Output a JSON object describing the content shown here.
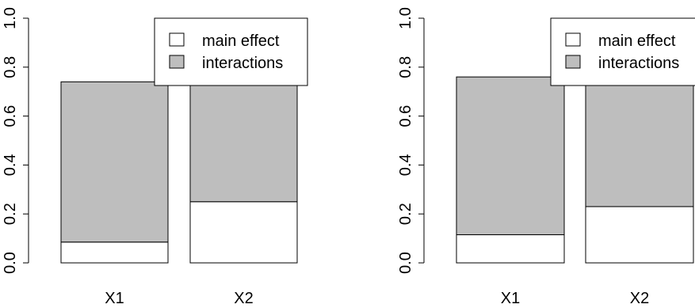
{
  "colors": {
    "main_effect": "#ffffff",
    "interactions": "#bebebe",
    "stroke": "#000000"
  },
  "legend": {
    "placement": "top-right",
    "items": [
      {
        "label": "main effect",
        "color": "#ffffff"
      },
      {
        "label": "interactions",
        "color": "#bebebe"
      }
    ]
  },
  "chart_data": [
    {
      "type": "bar",
      "stacked": true,
      "categories": [
        "X1",
        "X2"
      ],
      "series": [
        {
          "name": "main effect",
          "values": [
            0.085,
            0.25
          ]
        },
        {
          "name": "interactions",
          "values": [
            0.655,
            0.615
          ]
        }
      ],
      "totals": [
        0.74,
        0.865
      ],
      "ylim": [
        0,
        1
      ],
      "yticks": [
        "0.0",
        "0.2",
        "0.4",
        "0.6",
        "0.8",
        "1.0"
      ],
      "grid": false,
      "legend": "top-right"
    },
    {
      "type": "bar",
      "stacked": true,
      "categories": [
        "X1",
        "X2"
      ],
      "series": [
        {
          "name": "main effect",
          "values": [
            0.115,
            0.23
          ]
        },
        {
          "name": "interactions",
          "values": [
            0.645,
            0.645
          ]
        }
      ],
      "totals": [
        0.76,
        0.875
      ],
      "ylim": [
        0,
        1
      ],
      "yticks": [
        "0.0",
        "0.2",
        "0.4",
        "0.6",
        "0.8",
        "1.0"
      ],
      "grid": false,
      "legend": "top-right"
    }
  ]
}
